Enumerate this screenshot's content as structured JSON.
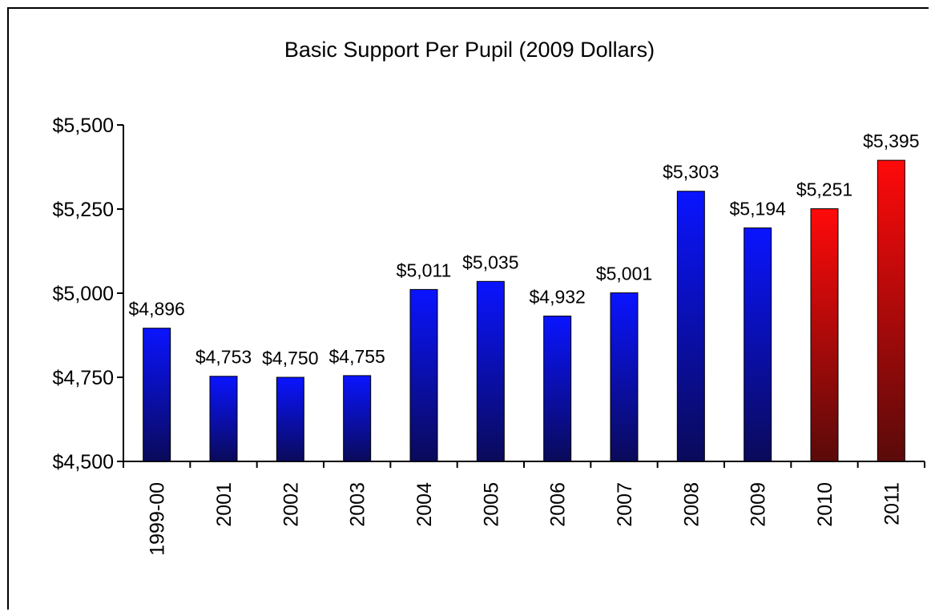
{
  "chart_data": {
    "type": "bar",
    "title": "Basic Support Per Pupil (2009 Dollars)",
    "xlabel": "",
    "ylabel": "",
    "categories": [
      "1999-00",
      "2001",
      "2002",
      "2003",
      "2004",
      "2005",
      "2006",
      "2007",
      "2008",
      "2009",
      "2010",
      "2011"
    ],
    "values": [
      4896,
      4753,
      4750,
      4755,
      5011,
      5035,
      4932,
      5001,
      5303,
      5194,
      5251,
      5395
    ],
    "data_labels": [
      "$4,896",
      "$4,753",
      "$4,750",
      "$4,755",
      "$5,011",
      "$5,035",
      "$4,932",
      "$5,001",
      "$5,303",
      "$5,194",
      "$5,251",
      "$5,395"
    ],
    "ylim": [
      4500,
      5500
    ],
    "yticks": [
      4500,
      4750,
      5000,
      5250,
      5500
    ],
    "ytick_labels": [
      "$4,500",
      "$4,750",
      "$5,000",
      "$5,250",
      "$5,500"
    ],
    "grid": false,
    "legend": "none",
    "colors": {
      "blue_top": "#0a14ff",
      "blue_bottom": "#0a0a5a",
      "red_top": "#ff0a0a",
      "red_bottom": "#5a0a0a"
    },
    "bar_color_keys": [
      "blue",
      "blue",
      "blue",
      "blue",
      "blue",
      "blue",
      "blue",
      "blue",
      "blue",
      "blue",
      "red",
      "red"
    ]
  }
}
